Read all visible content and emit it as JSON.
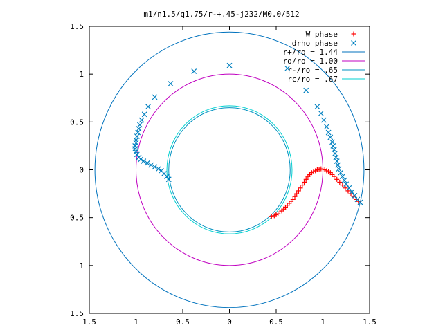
{
  "chart_data": {
    "type": "scatter",
    "title": "m1/n1.5/q1.75/r-+.45-j232/M0.0/512",
    "xlim": [
      -1.5,
      1.5
    ],
    "ylim": [
      -1.5,
      1.5
    ],
    "x_tick_labels": [
      "1.5",
      "1",
      "0.5",
      "0",
      "0.5",
      "1",
      "1.5"
    ],
    "x_tick_values": [
      -1.5,
      -1.0,
      -0.5,
      0,
      0.5,
      1.0,
      1.5
    ],
    "y_tick_labels": [
      "1.5",
      "1",
      "0.5",
      "0",
      "0.5",
      "1",
      "1.5"
    ],
    "y_tick_values": [
      1.5,
      1.0,
      0.5,
      0,
      -0.5,
      -1.0,
      -1.5
    ],
    "grid": false,
    "legend_position": "top-right",
    "series": [
      {
        "name": "W phase",
        "marker": "plus",
        "color": "#ff0000",
        "points": [
          [
            0.45,
            -0.49
          ],
          [
            0.48,
            -0.48
          ],
          [
            0.5,
            -0.47
          ],
          [
            0.52,
            -0.46
          ],
          [
            0.54,
            -0.44
          ],
          [
            0.56,
            -0.43
          ],
          [
            0.58,
            -0.41
          ],
          [
            0.6,
            -0.39
          ],
          [
            0.62,
            -0.37
          ],
          [
            0.64,
            -0.35
          ],
          [
            0.66,
            -0.33
          ],
          [
            0.68,
            -0.31
          ],
          [
            0.7,
            -0.28
          ],
          [
            0.72,
            -0.25
          ],
          [
            0.74,
            -0.22
          ],
          [
            0.76,
            -0.19
          ],
          [
            0.78,
            -0.16
          ],
          [
            0.8,
            -0.13
          ],
          [
            0.82,
            -0.1
          ],
          [
            0.84,
            -0.07
          ],
          [
            0.86,
            -0.05
          ],
          [
            0.88,
            -0.03
          ],
          [
            0.9,
            -0.02
          ],
          [
            0.92,
            -0.01
          ],
          [
            0.94,
            0.0
          ],
          [
            0.96,
            0.005
          ],
          [
            0.98,
            0.01
          ],
          [
            1.0,
            0.005
          ],
          [
            1.02,
            0.0
          ],
          [
            1.04,
            -0.01
          ],
          [
            1.06,
            -0.02
          ],
          [
            1.08,
            -0.03
          ],
          [
            1.1,
            -0.05
          ],
          [
            1.12,
            -0.07
          ],
          [
            1.15,
            -0.1
          ],
          [
            1.18,
            -0.13
          ],
          [
            1.21,
            -0.16
          ],
          [
            1.24,
            -0.19
          ],
          [
            1.27,
            -0.22
          ],
          [
            1.3,
            -0.25
          ],
          [
            1.33,
            -0.28
          ],
          [
            1.36,
            -0.31
          ],
          [
            1.38,
            -0.33
          ]
        ]
      },
      {
        "name": "drho phase",
        "marker": "cross",
        "color": "#0080c0",
        "points": [
          [
            0.0,
            1.09
          ],
          [
            -0.38,
            1.03
          ],
          [
            -0.63,
            0.9
          ],
          [
            -0.8,
            0.76
          ],
          [
            -0.87,
            0.66
          ],
          [
            -0.91,
            0.58
          ],
          [
            -0.94,
            0.52
          ],
          [
            -0.96,
            0.47
          ],
          [
            -0.97,
            0.43
          ],
          [
            -0.98,
            0.39
          ],
          [
            -0.99,
            0.35
          ],
          [
            -1.0,
            0.31
          ],
          [
            -1.0,
            0.28
          ],
          [
            -1.01,
            0.25
          ],
          [
            -1.01,
            0.22
          ],
          [
            -1.0,
            0.19
          ],
          [
            -0.99,
            0.16
          ],
          [
            -0.97,
            0.13
          ],
          [
            -0.95,
            0.11
          ],
          [
            -0.92,
            0.09
          ],
          [
            -0.88,
            0.07
          ],
          [
            -0.84,
            0.05
          ],
          [
            -0.8,
            0.03
          ],
          [
            -0.76,
            0.01
          ],
          [
            -0.73,
            -0.01
          ],
          [
            -0.7,
            -0.04
          ],
          [
            -0.67,
            -0.07
          ],
          [
            -0.65,
            -0.1
          ],
          [
            0.62,
            1.06
          ],
          [
            0.82,
            0.83
          ],
          [
            0.94,
            0.66
          ],
          [
            0.98,
            0.59
          ],
          [
            1.01,
            0.52
          ],
          [
            1.04,
            0.45
          ],
          [
            1.06,
            0.39
          ],
          [
            1.08,
            0.34
          ],
          [
            1.1,
            0.29
          ],
          [
            1.11,
            0.25
          ],
          [
            1.12,
            0.21
          ],
          [
            1.13,
            0.17
          ],
          [
            1.14,
            0.13
          ],
          [
            1.15,
            0.09
          ],
          [
            1.16,
            0.05
          ],
          [
            1.17,
            0.01
          ],
          [
            1.19,
            -0.03
          ],
          [
            1.21,
            -0.07
          ],
          [
            1.23,
            -0.11
          ],
          [
            1.25,
            -0.15
          ],
          [
            1.28,
            -0.19
          ],
          [
            1.31,
            -0.23
          ],
          [
            1.34,
            -0.27
          ],
          [
            1.37,
            -0.31
          ],
          [
            1.4,
            -0.34
          ]
        ]
      }
    ],
    "circles": [
      {
        "name": "r+/ro = 1.44",
        "radius": 1.44,
        "color": "#0072bd"
      },
      {
        "name": "ro/ro = 1.00",
        "radius": 1.0,
        "color": "#c000c0"
      },
      {
        "name": "r-/ro = .65",
        "radius": 0.65,
        "color": "#0090c0"
      },
      {
        "name": "rc/ro = .67",
        "radius": 0.67,
        "color": "#00d0d0"
      }
    ]
  }
}
